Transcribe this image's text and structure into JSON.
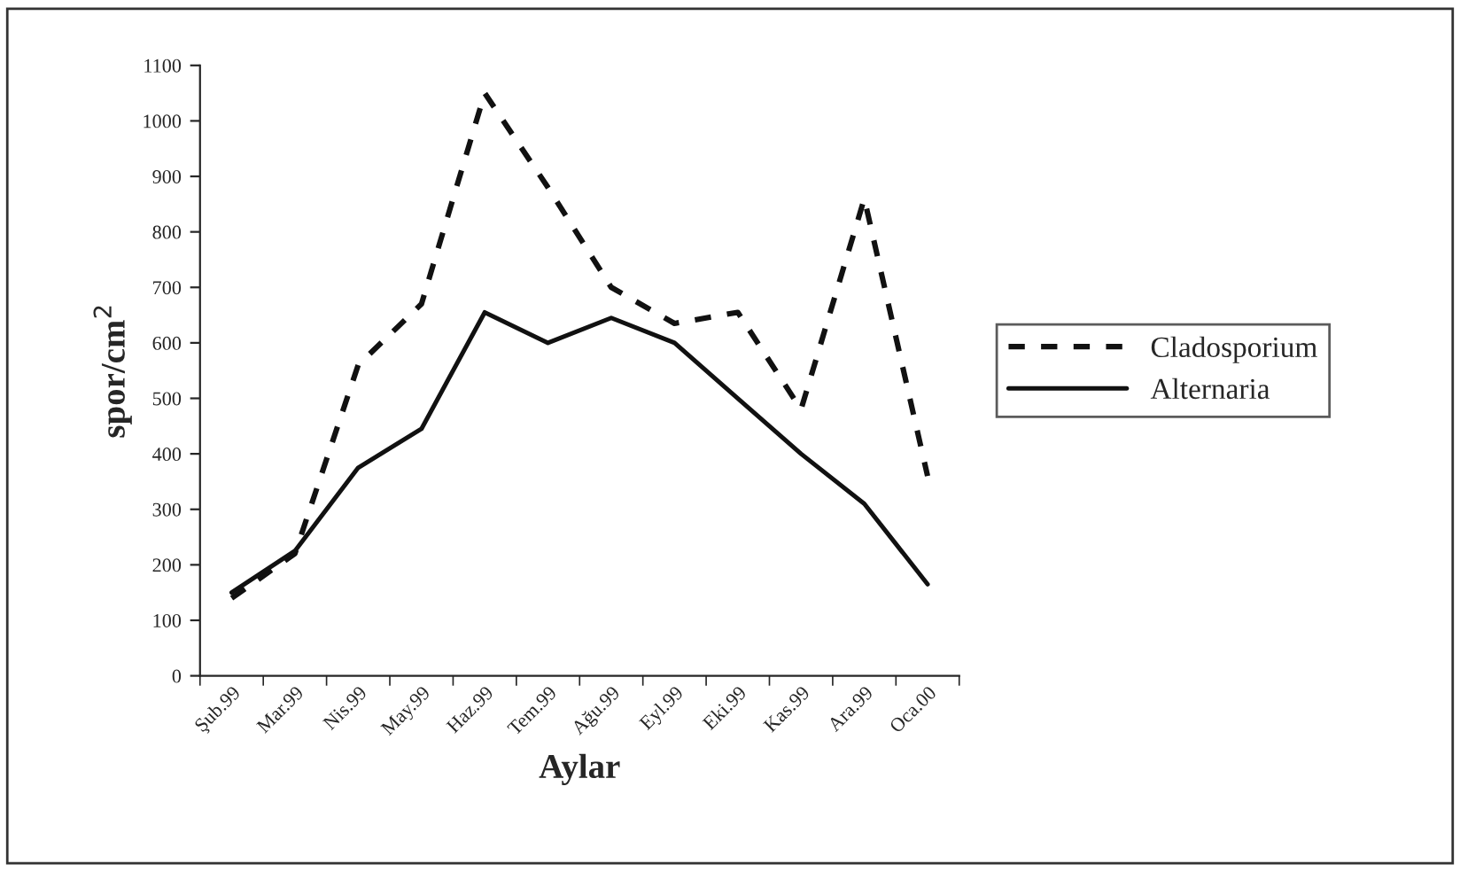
{
  "chart_data": {
    "type": "line",
    "xlabel": "Aylar",
    "ylabel": "spor/cm$^{2}$",
    "categories": [
      "Şub.99",
      "Mar.99",
      "Nis.99",
      "May.99",
      "Haz.99",
      "Tem.99",
      "Ağu.99",
      "Eyl.99",
      "Eki.99",
      "Kas.99",
      "Ara.99",
      "Oca.00"
    ],
    "series": [
      {
        "name": "Cladosporium",
        "color": "#111111",
        "line_style": "dashed",
        "values": [
          140,
          220,
          560,
          670,
          1050,
          880,
          700,
          635,
          655,
          480,
          860,
          360
        ]
      },
      {
        "name": "Alternaria",
        "color": "#111111",
        "line_style": "solid",
        "values": [
          150,
          225,
          375,
          445,
          655,
          600,
          645,
          600,
          500,
          400,
          310,
          165
        ]
      }
    ],
    "ylim": [
      0,
      1100
    ],
    "yticks": [
      0,
      100,
      200,
      300,
      400,
      500,
      600,
      700,
      800,
      900,
      1000,
      1100
    ],
    "grid": false,
    "legend": "right",
    "marker": "none"
  }
}
